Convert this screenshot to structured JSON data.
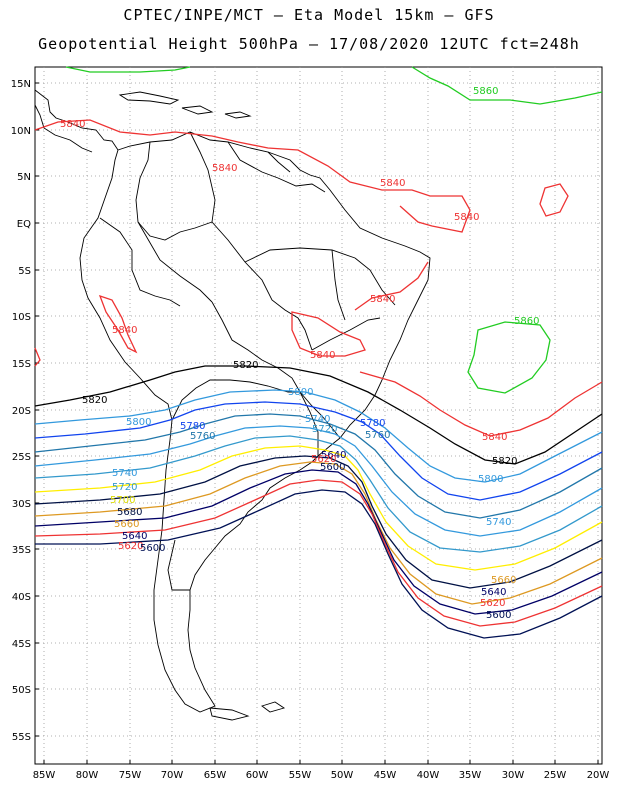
{
  "title_line1": "CPTEC/INPE/MCT –  Eta Model 15km – GFS",
  "title_line2": "Geopotential Height 500hPa – 17/08/2020 12UTC fct=248h",
  "lat_labels": [
    "15N",
    "10N",
    "5N",
    "EQ",
    "5S",
    "10S",
    "15S",
    "20S",
    "25S",
    "30S",
    "35S",
    "40S",
    "45S",
    "50S",
    "55S"
  ],
  "lon_labels": [
    "85W",
    "80W",
    "75W",
    "70W",
    "65W",
    "60W",
    "55W",
    "50W",
    "45W",
    "40W",
    "35W",
    "30W",
    "25W",
    "20W"
  ],
  "colors": {
    "c5860": "#22cc22",
    "c5840": "#ee3333",
    "c5820": "#000000",
    "c5800": "#3399dd",
    "c5780": "#1144ee",
    "c5760": "#2277aa",
    "c5740": "#3399dd",
    "c5720": "#3399cc",
    "c5700": "#ffee00",
    "c5680": "#001144",
    "c5660": "#dd9922",
    "c5640": "#000066",
    "c5620": "#ee3333",
    "c5600": "#001155",
    "border": "#000000",
    "grid": "#999999"
  },
  "contour_labels": [
    {
      "text": "5860",
      "color": "#22cc22"
    },
    {
      "text": "5860",
      "color": "#22cc22"
    },
    {
      "text": "5840",
      "color": "#ee3333"
    },
    {
      "text": "5840",
      "color": "#ee3333"
    },
    {
      "text": "5840",
      "color": "#ee3333"
    },
    {
      "text": "5840",
      "color": "#ee3333"
    },
    {
      "text": "5840",
      "color": "#ee3333"
    },
    {
      "text": "5840",
      "color": "#ee3333"
    },
    {
      "text": "5840",
      "color": "#ee3333"
    },
    {
      "text": "5840",
      "color": "#ee3333"
    },
    {
      "text": "5820",
      "color": "#000000"
    },
    {
      "text": "5820",
      "color": "#000000"
    },
    {
      "text": "5820",
      "color": "#000000"
    },
    {
      "text": "5800",
      "color": "#3399dd"
    },
    {
      "text": "5800",
      "color": "#3399dd"
    },
    {
      "text": "5800",
      "color": "#3399dd"
    },
    {
      "text": "5780",
      "color": "#1144ee"
    },
    {
      "text": "5780",
      "color": "#1144ee"
    },
    {
      "text": "5760",
      "color": "#2277aa"
    },
    {
      "text": "5760",
      "color": "#2277aa"
    },
    {
      "text": "5740",
      "color": "#3399dd"
    },
    {
      "text": "5740",
      "color": "#3399dd"
    },
    {
      "text": "5740",
      "color": "#3399dd"
    },
    {
      "text": "5720",
      "color": "#3399cc"
    },
    {
      "text": "5720",
      "color": "#3399cc"
    },
    {
      "text": "5700",
      "color": "#dddd00"
    },
    {
      "text": "5680",
      "color": "#001144"
    },
    {
      "text": "5660",
      "color": "#dd9922"
    },
    {
      "text": "5660",
      "color": "#dd9922"
    },
    {
      "text": "5640",
      "color": "#000066"
    },
    {
      "text": "5640",
      "color": "#000066"
    },
    {
      "text": "5640",
      "color": "#000066"
    },
    {
      "text": "5620",
      "color": "#ee3333"
    },
    {
      "text": "5620",
      "color": "#ee3333"
    },
    {
      "text": "5620",
      "color": "#ee3333"
    },
    {
      "text": "5600",
      "color": "#001155"
    },
    {
      "text": "5600",
      "color": "#001155"
    },
    {
      "text": "5600",
      "color": "#001155"
    }
  ]
}
